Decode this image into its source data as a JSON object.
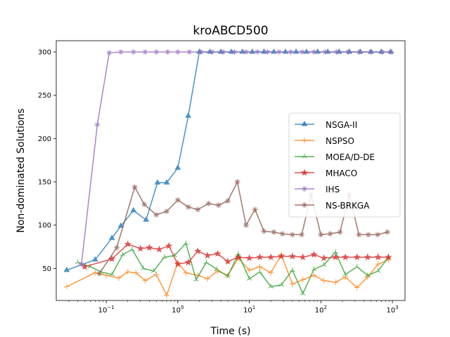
{
  "chart_data": {
    "type": "line",
    "title": "kroABCD500",
    "xlabel": "Time (s)",
    "ylabel": "Non-dominated Solutions",
    "xscale": "log",
    "xlim": [
      0.02,
      1500
    ],
    "ylim": [
      13,
      313
    ],
    "xticks": [
      {
        "value": 0.1,
        "base": "10",
        "exp": "−1"
      },
      {
        "value": 1,
        "base": "10",
        "exp": "0"
      },
      {
        "value": 10,
        "base": "10",
        "exp": "1"
      },
      {
        "value": 100,
        "base": "10",
        "exp": "2"
      },
      {
        "value": 1000,
        "base": "10",
        "exp": "3"
      }
    ],
    "yticks": [
      50,
      100,
      150,
      200,
      250,
      300
    ],
    "legend": {
      "position": "center-right"
    },
    "series": [
      {
        "name": "NSGA-II",
        "color": "#1f77b4",
        "marker": "tri-up",
        "x": [
          0.028,
          0.07,
          0.12,
          0.16,
          0.24,
          0.36,
          0.52,
          0.7,
          1.0,
          1.4,
          2.0,
          2.8,
          4.0,
          5.6,
          8.0,
          11,
          16,
          22,
          32,
          45,
          63,
          90,
          125,
          180,
          250,
          355,
          500,
          700,
          950
        ],
        "y": [
          48,
          60,
          85,
          99,
          117,
          106,
          149,
          149,
          166,
          226,
          300,
          300,
          300,
          300,
          300,
          300,
          300,
          300,
          300,
          300,
          300,
          300,
          300,
          300,
          300,
          300,
          300,
          300,
          300
        ]
      },
      {
        "name": "NSPSO",
        "color": "#ff7f0e",
        "marker": "plus",
        "x": [
          0.028,
          0.07,
          0.1,
          0.15,
          0.2,
          0.26,
          0.35,
          0.5,
          0.7,
          1.0,
          1.3,
          1.9,
          2.6,
          3.6,
          5.0,
          7.0,
          10,
          14,
          20,
          28,
          40,
          56,
          80,
          110,
          160,
          220,
          320,
          450,
          630,
          880
        ],
        "y": [
          29,
          45,
          42,
          39,
          46,
          45,
          36,
          43,
          19,
          57,
          45,
          42,
          38,
          47,
          42,
          62,
          48,
          52,
          45,
          66,
          32,
          37,
          42,
          36,
          34,
          40,
          28,
          40,
          55,
          60
        ]
      },
      {
        "name": "MOEA/D-DE",
        "color": "#2ca02c",
        "marker": "tri-star",
        "x": [
          0.04,
          0.06,
          0.085,
          0.12,
          0.17,
          0.23,
          0.33,
          0.46,
          0.65,
          0.9,
          1.3,
          1.8,
          2.5,
          3.5,
          5.0,
          7.0,
          10,
          14,
          20,
          28,
          40,
          56,
          80,
          110,
          160,
          220,
          320,
          450,
          630,
          880
        ],
        "y": [
          57,
          52,
          46,
          43,
          66,
          72,
          50,
          47,
          63,
          65,
          79,
          37,
          57,
          49,
          41,
          67,
          38,
          46,
          29,
          31,
          48,
          21,
          49,
          54,
          69,
          43,
          52,
          42,
          47,
          63
        ]
      },
      {
        "name": "MHACO",
        "color": "#d62728",
        "marker": "star",
        "x": [
          0.05,
          0.12,
          0.2,
          0.3,
          0.4,
          0.55,
          0.75,
          1.0,
          1.4,
          1.9,
          2.6,
          3.6,
          5.0,
          7.0,
          10,
          14,
          20,
          28,
          40,
          56,
          80,
          110,
          160,
          220,
          320,
          450,
          630,
          880
        ],
        "y": [
          52,
          61,
          78,
          73,
          74,
          72,
          76,
          55,
          57,
          70,
          65,
          67,
          58,
          63,
          62,
          63,
          63,
          64,
          64,
          63,
          66,
          62,
          63,
          63,
          63,
          63,
          63,
          63
        ]
      },
      {
        "name": "IHS",
        "color": "#9467bd",
        "marker": "star-plus",
        "x": [
          0.045,
          0.075,
          0.11,
          0.16,
          0.24,
          0.35,
          0.5,
          0.72,
          1.0,
          1.45,
          2.1,
          3.0,
          4.3,
          6.2,
          9,
          13,
          18,
          26,
          38,
          55,
          80,
          115,
          165,
          240,
          345,
          500,
          720,
          950
        ],
        "y": [
          55,
          216,
          299,
          300,
          300,
          300,
          300,
          300,
          300,
          300,
          300,
          300,
          300,
          300,
          300,
          300,
          300,
          300,
          300,
          300,
          300,
          300,
          300,
          300,
          300,
          300,
          300,
          300
        ]
      },
      {
        "name": "NS-BRKGA",
        "color": "#8c564b",
        "marker": "star-plus",
        "x": [
          0.08,
          0.14,
          0.25,
          0.34,
          0.5,
          0.7,
          1.0,
          1.4,
          1.9,
          2.7,
          3.7,
          5.0,
          6.8,
          9,
          12,
          16,
          22,
          29,
          40,
          54,
          73,
          100,
          135,
          185,
          250,
          340,
          460,
          620,
          850
        ],
        "y": [
          44,
          74,
          144,
          124,
          112,
          116,
          129,
          121,
          118,
          125,
          123,
          128,
          150,
          100,
          118,
          93,
          92,
          90,
          89,
          89,
          135,
          89,
          90,
          92,
          135,
          89,
          89,
          89,
          92
        ]
      }
    ]
  }
}
